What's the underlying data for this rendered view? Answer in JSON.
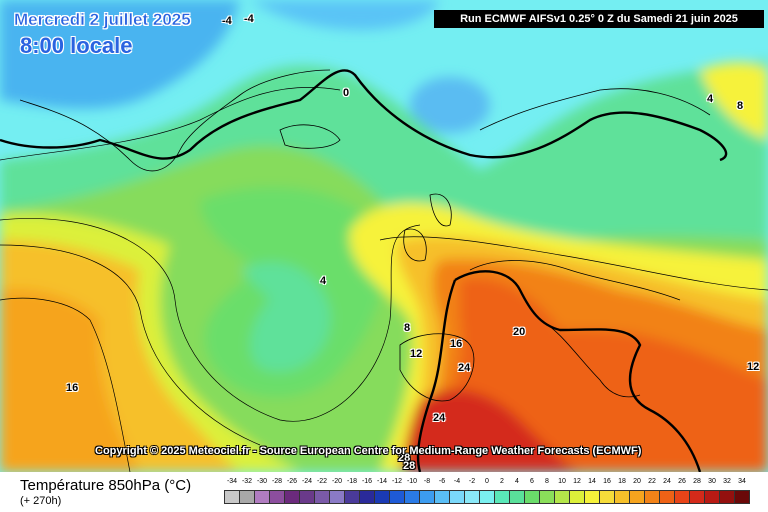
{
  "header": {
    "date": "Mercredi 2 juillet 2025",
    "time": "8:00 locale",
    "run": "Run ECMWF AIFSv1 0.25° 0 Z du Samedi 21 juin 2025"
  },
  "copyright": "Copyright © 2025 Meteociel.fr - Source European Centre for Medium-Range Weather Forecasts (ECMWF)",
  "footer": {
    "parameter": "Température 850hPa (°C)",
    "lead": "(+ 270h)"
  },
  "legend": {
    "values": [
      "-34",
      "-32",
      "-30",
      "-28",
      "-26",
      "-24",
      "-22",
      "-20",
      "-18",
      "-16",
      "-14",
      "-12",
      "-10",
      "-8",
      "-6",
      "-4",
      "-2",
      "0",
      "2",
      "4",
      "6",
      "8",
      "10",
      "12",
      "14",
      "16",
      "18",
      "20",
      "22",
      "24",
      "26",
      "28",
      "30",
      "32",
      "34"
    ],
    "colors": [
      "#c8c8c8",
      "#a8a8a8",
      "#b07cc0",
      "#8c4e9e",
      "#6b2a7c",
      "#6a3a8a",
      "#7a5aa8",
      "#8a7ac6",
      "#4a3a9a",
      "#2a2a9a",
      "#1a3ab4",
      "#1e5ad6",
      "#2a7ae6",
      "#3c9cf0",
      "#5abef6",
      "#7ad8fa",
      "#8ae8f8",
      "#7af0f0",
      "#5ae8b8",
      "#5ae09a",
      "#6adc6a",
      "#8ade5a",
      "#b4e64a",
      "#dcf03a",
      "#f6f23a",
      "#f6dc3a",
      "#f6c02a",
      "#f6a41e",
      "#f28218",
      "#ee6216",
      "#e84418",
      "#d42a1a",
      "#b81a14",
      "#94100e",
      "#6a0808"
    ]
  },
  "isotherm_labels": [
    "-4",
    "-4",
    "0",
    "4",
    "4",
    "8",
    "8",
    "12",
    "12",
    "16",
    "16",
    "20",
    "24",
    "24",
    "28",
    "28",
    "4"
  ]
}
